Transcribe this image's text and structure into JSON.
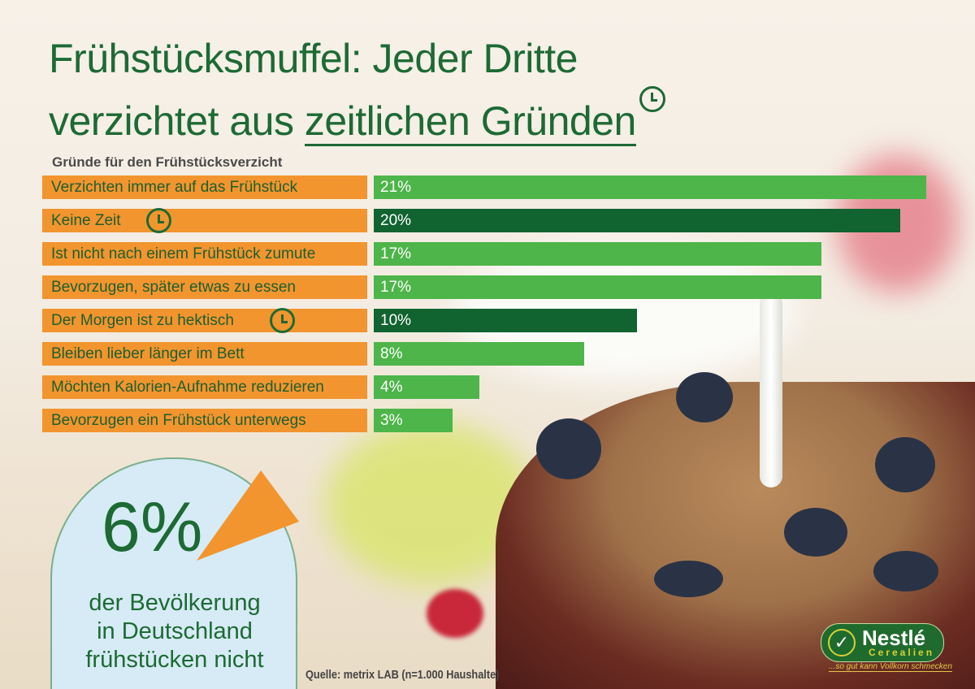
{
  "title": {
    "line1": "Frühstücksmuffel: Jeder Dritte",
    "line2_prefix": "verzichtet aus ",
    "line2_underlined": "zeitlichen Gründen",
    "icon": "clock-icon"
  },
  "colors": {
    "title_green": "#1d6a34",
    "label_orange": "#f2952f",
    "bar_green": "#4db549",
    "bar_dark_green": "#116330",
    "circle_blue": "#d6ebf5"
  },
  "chart_data": {
    "type": "bar",
    "orientation": "horizontal",
    "title": "Gründe für den Frühstücksverzicht",
    "categories": [
      "Verzichten immer auf das Frühstück",
      "Keine Zeit",
      "Ist nicht nach einem Frühstück zumute",
      "Bevorzugen, später etwas zu essen",
      "Der Morgen ist zu hektisch",
      "Bleiben lieber länger im Bett",
      "Möchten Kalorien-Aufnahme reduzieren",
      "Bevorzugen ein Frühstück unterwegs"
    ],
    "values": [
      21,
      20,
      17,
      17,
      10,
      8,
      4,
      3
    ],
    "data_labels": [
      "21%",
      "20%",
      "17%",
      "17%",
      "10%",
      "8%",
      "4%",
      "3%"
    ],
    "highlighted": [
      false,
      true,
      false,
      false,
      true,
      false,
      false,
      false
    ],
    "unit": "%",
    "grid": false
  },
  "highlight": {
    "value": "6%",
    "text_lines": [
      "der Bevölkerung",
      "in Deutschland",
      "frühstücken nicht"
    ],
    "pie_fraction": 0.06
  },
  "source": "Quelle: metrix LAB (n=1.000 Haushalte)",
  "logo": {
    "name": "Nestlé",
    "sub": "Cerealien",
    "slogan": "...so gut kann Vollkorn schmecken"
  }
}
